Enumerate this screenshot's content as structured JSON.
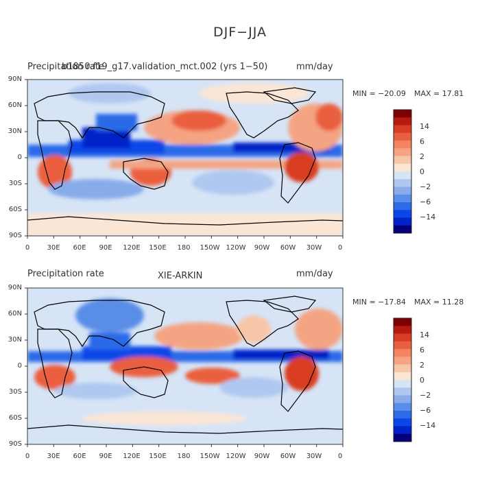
{
  "title": "DJF−JJA",
  "colors": {
    "scale": [
      "#08007a",
      "#0022c8",
      "#0a46e8",
      "#2c6ae8",
      "#5a8de8",
      "#88abea",
      "#b0c8f0",
      "#d6e4f6",
      "#fbe6d6",
      "#f7c6a8",
      "#f4a483",
      "#f28460",
      "#ea5f3e",
      "#d83c24",
      "#b61a10",
      "#7e0000"
    ],
    "land_outline": "#000000",
    "ocean_base": "#d6e4f6"
  },
  "panels": [
    {
      "id": "model",
      "left_label": "Precipitation rate",
      "center_label": "b1850.f19_g17.validation_mct.002 (yrs 1−50)",
      "units": "mm/day",
      "min_label": "MIN = −20.09",
      "max_label": "MAX =  17.81"
    },
    {
      "id": "obs",
      "left_label": "Precipitation rate",
      "center_label": "XIE-ARKIN",
      "units": "mm/day",
      "min_label": "MIN = −17.84",
      "max_label": "MAX =  11.28"
    }
  ],
  "axes": {
    "lat_ticks": [
      "90N",
      "60N",
      "30N",
      "0",
      "30S",
      "60S",
      "90S"
    ],
    "lon_ticks": [
      "0",
      "30E",
      "60E",
      "90E",
      "120E",
      "150E",
      "180",
      "150W",
      "120W",
      "90W",
      "60W",
      "30W",
      "0"
    ]
  },
  "colorbar_labels": [
    "14",
    "6",
    "2",
    "0",
    "−2",
    "−6",
    "−14"
  ]
}
